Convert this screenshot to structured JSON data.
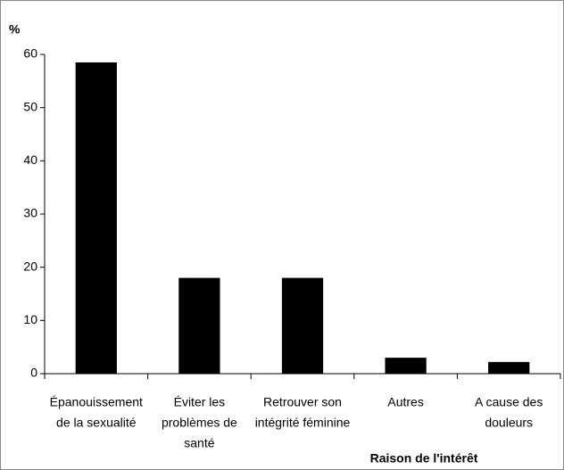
{
  "chart_data": {
    "type": "bar",
    "y_label": "%",
    "x_label": "Raison de l'intérêt",
    "categories": [
      [
        "Épanouissement",
        "de la sexualité"
      ],
      [
        "Éviter les",
        "problèmes de",
        "santé"
      ],
      [
        "Retrouver son",
        "intégrité féminine"
      ],
      [
        "Autres"
      ],
      [
        "A cause des",
        "douleurs"
      ]
    ],
    "values": [
      58.5,
      18,
      18,
      3,
      2.2
    ],
    "color": "#000000",
    "ylim": [
      0,
      60
    ],
    "yticks": [
      0,
      10,
      20,
      30,
      40,
      50,
      60
    ],
    "grid": false
  }
}
